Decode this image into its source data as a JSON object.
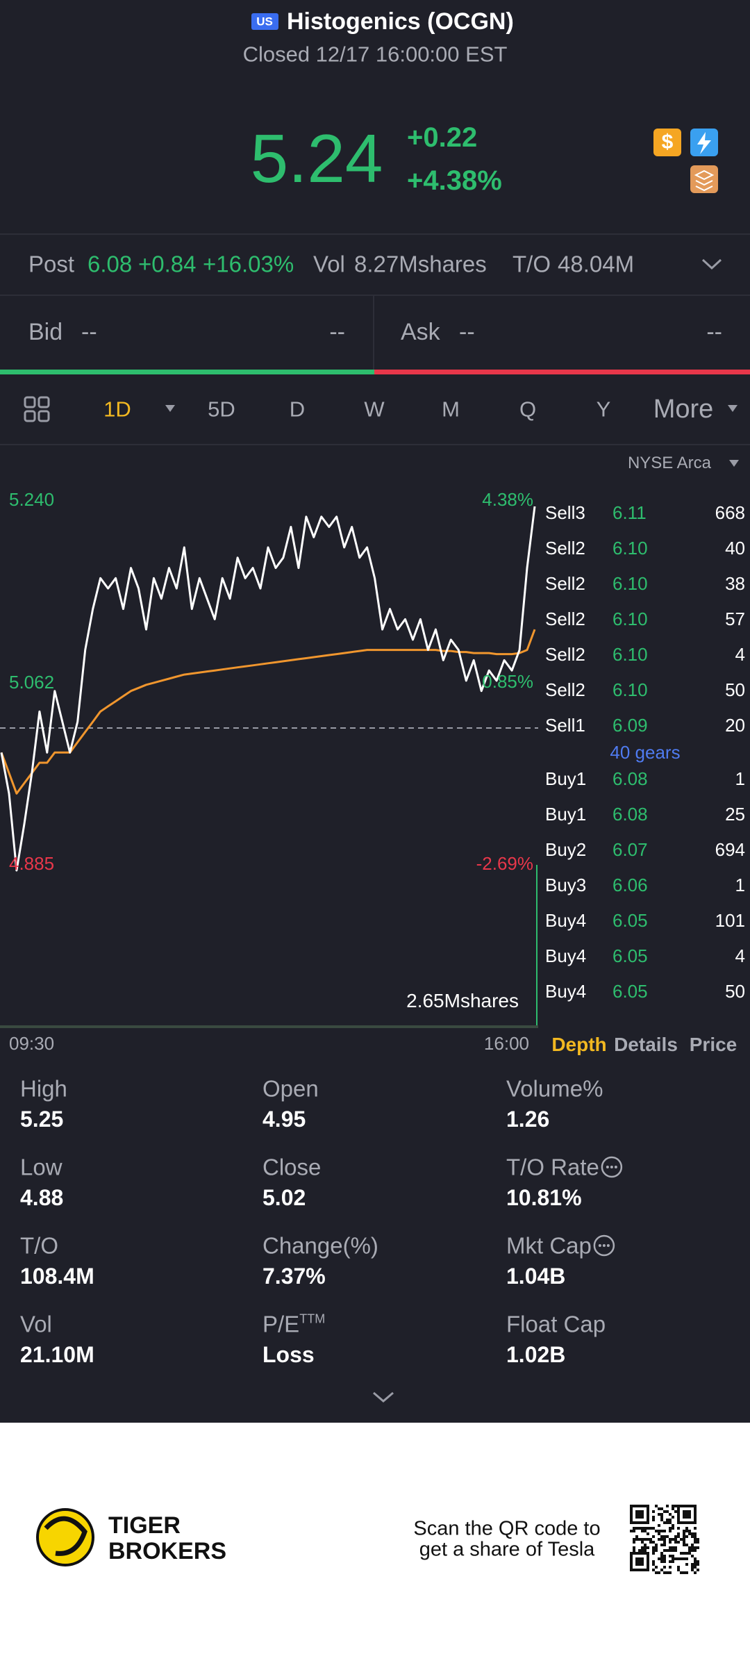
{
  "header": {
    "badge": "US",
    "title": "Histogenics (OCGN)",
    "status": "Closed 12/17 16:00:00 EST"
  },
  "quote": {
    "price": "5.24",
    "change": "+0.22",
    "change_pct": "+4.38%"
  },
  "post": {
    "label": "Post",
    "price": "6.08",
    "change": "+0.84",
    "change_pct": "+16.03%",
    "vol_label": "Vol",
    "vol": "8.27Mshares",
    "to_label": "T/O",
    "to": "48.04M"
  },
  "bid_ask": {
    "bid_label": "Bid",
    "bid": "--",
    "bid_size": "--",
    "ask_label": "Ask",
    "ask": "--",
    "ask_size": "--"
  },
  "periods": [
    "1D",
    "5D",
    "D",
    "W",
    "M",
    "Q",
    "Y",
    "More"
  ],
  "chart": {
    "type": "line",
    "exchange": "NYSE Arca",
    "ylim": [
      4.885,
      5.24
    ],
    "yticks": [
      {
        "value": 5.24,
        "label": "5.240"
      },
      5.062,
      4.885
    ],
    "y2lim": [
      -2.69,
      4.38
    ],
    "y2ticks": [
      {
        "value": 4.38,
        "label": "4.38%"
      },
      {
        "value": 0.85,
        "label": "0.85%"
      },
      {
        "value": -2.69,
        "label": "-2.69%"
      }
    ],
    "xlabels": [
      "09:30",
      "16:00"
    ],
    "volume_label": "2.65Mshares",
    "price": {
      "color": "#ffffff",
      "values": [
        5.0,
        4.96,
        4.885,
        4.93,
        4.98,
        5.04,
        5.0,
        5.06,
        5.03,
        5.0,
        5.03,
        5.1,
        5.14,
        5.17,
        5.16,
        5.17,
        5.14,
        5.18,
        5.16,
        5.12,
        5.17,
        5.15,
        5.18,
        5.16,
        5.2,
        5.14,
        5.17,
        5.15,
        5.13,
        5.17,
        5.15,
        5.19,
        5.17,
        5.18,
        5.16,
        5.2,
        5.18,
        5.19,
        5.22,
        5.18,
        5.23,
        5.21,
        5.23,
        5.22,
        5.23,
        5.2,
        5.22,
        5.19,
        5.2,
        5.17,
        5.12,
        5.14,
        5.12,
        5.13,
        5.11,
        5.13,
        5.1,
        5.12,
        5.09,
        5.11,
        5.1,
        5.07,
        5.09,
        5.06,
        5.08,
        5.07,
        5.09,
        5.08,
        5.1,
        5.18,
        5.24
      ]
    },
    "average": {
      "color": "#f0962e",
      "values": [
        5.0,
        4.98,
        4.96,
        4.97,
        4.98,
        4.99,
        4.99,
        5.0,
        5.0,
        5.0,
        5.01,
        5.02,
        5.03,
        5.04,
        5.045,
        5.05,
        5.055,
        5.06,
        5.063,
        5.066,
        5.068,
        5.07,
        5.072,
        5.074,
        5.076,
        5.077,
        5.078,
        5.079,
        5.08,
        5.081,
        5.082,
        5.083,
        5.084,
        5.085,
        5.086,
        5.087,
        5.088,
        5.089,
        5.09,
        5.091,
        5.092,
        5.093,
        5.094,
        5.095,
        5.096,
        5.097,
        5.098,
        5.099,
        5.1,
        5.1,
        5.1,
        5.1,
        5.1,
        5.1,
        5.1,
        5.1,
        5.1,
        5.1,
        5.099,
        5.099,
        5.098,
        5.098,
        5.097,
        5.097,
        5.097,
        5.096,
        5.096,
        5.096,
        5.097,
        5.1,
        5.12
      ]
    }
  },
  "book": {
    "sell": [
      [
        "Sell3",
        "6.11",
        "668"
      ],
      [
        "Sell2",
        "6.10",
        "40"
      ],
      [
        "Sell2",
        "6.10",
        "38"
      ],
      [
        "Sell2",
        "6.10",
        "57"
      ],
      [
        "Sell2",
        "6.10",
        "4"
      ],
      [
        "Sell2",
        "6.10",
        "50"
      ],
      [
        "Sell1",
        "6.09",
        "20"
      ]
    ],
    "gears": "40 gears",
    "buy": [
      [
        "Buy1",
        "6.08",
        "1"
      ],
      [
        "Buy1",
        "6.08",
        "25"
      ],
      [
        "Buy2",
        "6.07",
        "694"
      ],
      [
        "Buy3",
        "6.06",
        "1"
      ],
      [
        "Buy4",
        "6.05",
        "101"
      ],
      [
        "Buy4",
        "6.05",
        "4"
      ],
      [
        "Buy4",
        "6.05",
        "50"
      ]
    ],
    "tabs": [
      "Depth",
      "Details",
      "Price"
    ]
  },
  "stats": [
    {
      "label": "High",
      "value": "5.25"
    },
    {
      "label": "Open",
      "value": "4.95"
    },
    {
      "label": "Volume%",
      "value": "1.26"
    },
    {
      "label": "Low",
      "value": "4.88"
    },
    {
      "label": "Close",
      "value": "5.02"
    },
    {
      "label": "T/O Rate",
      "value": "10.81%"
    },
    {
      "label": "T/O",
      "value": "108.4M"
    },
    {
      "label": "Change(%)",
      "value": "7.37%"
    },
    {
      "label": "Mkt Cap",
      "value": "1.04B"
    },
    {
      "label": "Vol",
      "value": "21.10M"
    },
    {
      "label": "P/E",
      "sup": "TTM",
      "value": "Loss"
    },
    {
      "label": "Float Cap",
      "value": "1.02B"
    }
  ],
  "footer": {
    "brand": [
      "TIGER",
      "BROKERS"
    ],
    "qr_text": [
      "Scan the QR code to",
      "get a share of Tesla"
    ]
  }
}
